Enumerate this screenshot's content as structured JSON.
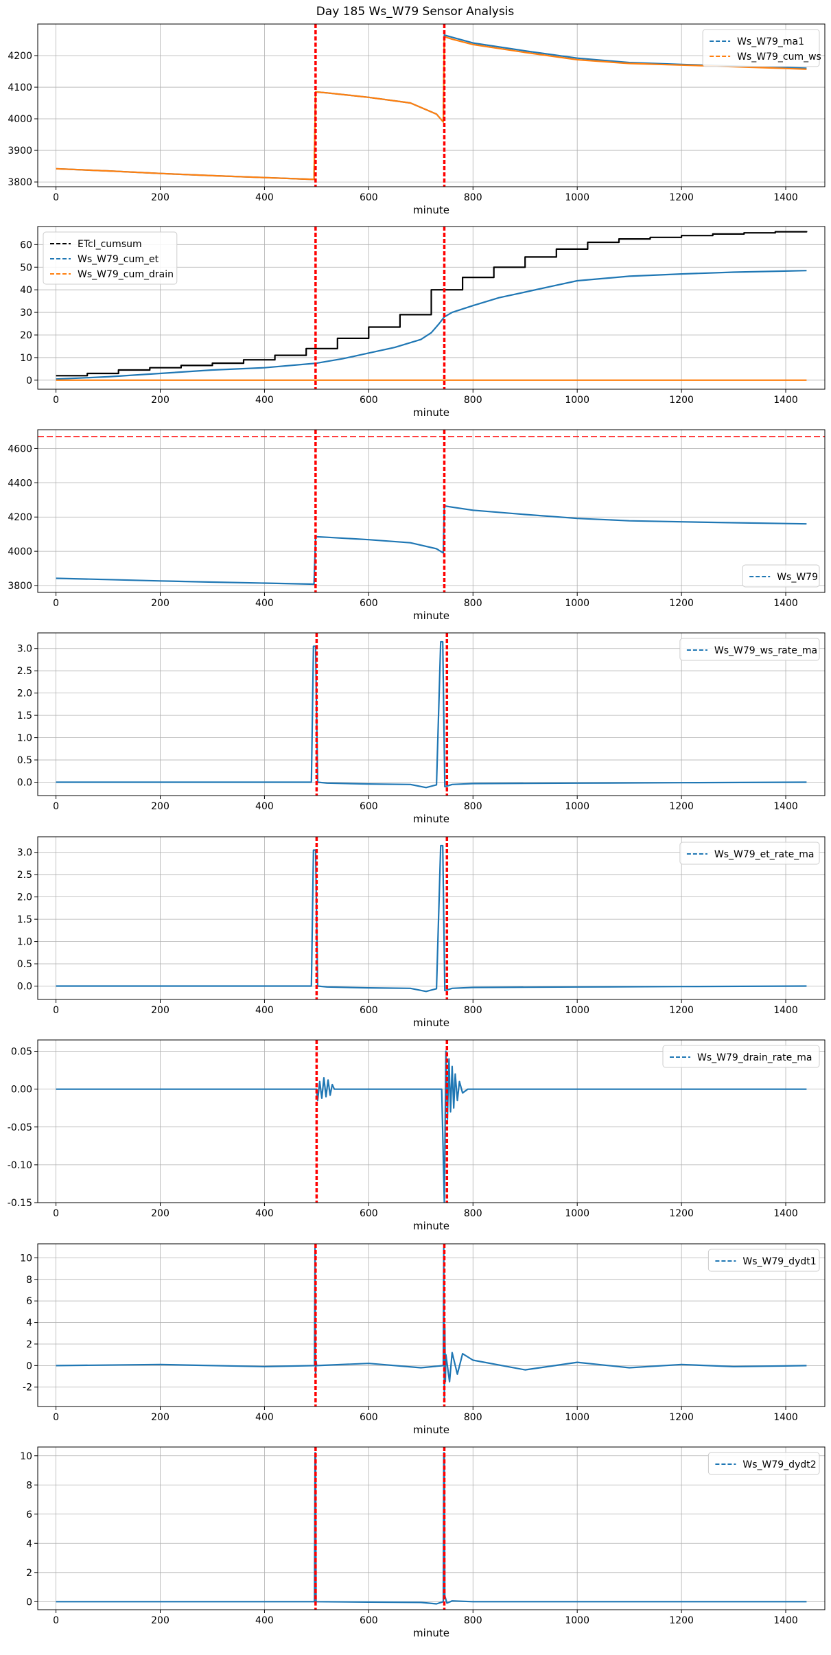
{
  "figure": {
    "title": "Day 185 Ws_W79 Sensor Analysis"
  },
  "colors": {
    "blue": "#1f77b4",
    "orange": "#ff7f0e",
    "black": "#000000",
    "red": "#ff0000",
    "grid": "#b0b0b0"
  },
  "chart_data": [
    {
      "type": "line",
      "xlabel": "minute",
      "xlim": [
        -35,
        1475
      ],
      "ylim": [
        3785,
        4300
      ],
      "xticks": [
        0,
        200,
        400,
        600,
        800,
        1000,
        1200,
        1400
      ],
      "yticks": [
        3800,
        3900,
        4000,
        4100,
        4200
      ],
      "grid": true,
      "legend_position": "top-right",
      "vlines": [
        498,
        745
      ],
      "series": [
        {
          "name": "Ws_W79_ma1",
          "color": "#1f77b4",
          "x": [
            0,
            100,
            200,
            300,
            400,
            495,
            498,
            520,
            600,
            680,
            730,
            743,
            745,
            760,
            800,
            900,
            1000,
            1100,
            1200,
            1300,
            1440
          ],
          "values": [
            3842,
            3835,
            3827,
            3820,
            3814,
            3808,
            4085,
            4082,
            4068,
            4050,
            4015,
            3990,
            4265,
            4258,
            4240,
            4215,
            4192,
            4178,
            4172,
            4167,
            4160
          ]
        },
        {
          "name": "Ws_W79_cum_ws",
          "color": "#ff7f0e",
          "x": [
            0,
            100,
            200,
            300,
            400,
            495,
            498,
            520,
            600,
            680,
            730,
            743,
            745,
            760,
            800,
            900,
            1000,
            1100,
            1200,
            1300,
            1440
          ],
          "values": [
            3842,
            3835,
            3827,
            3820,
            3814,
            3808,
            4085,
            4082,
            4068,
            4050,
            4015,
            3990,
            4260,
            4252,
            4235,
            4210,
            4187,
            4175,
            4170,
            4165,
            4157
          ]
        }
      ]
    },
    {
      "type": "line",
      "xlabel": "minute",
      "xlim": [
        -35,
        1475
      ],
      "ylim": [
        -4,
        68
      ],
      "xticks": [
        0,
        200,
        400,
        600,
        800,
        1000,
        1200,
        1400
      ],
      "yticks": [
        0,
        10,
        20,
        30,
        40,
        50,
        60
      ],
      "grid": true,
      "legend_position": "top-left",
      "vlines": [
        498,
        745
      ],
      "series": [
        {
          "name": "ETcl_cumsum",
          "color": "#000000",
          "step": true,
          "x": [
            0,
            60,
            120,
            180,
            240,
            300,
            360,
            420,
            480,
            540,
            600,
            660,
            720,
            780,
            840,
            900,
            960,
            1020,
            1080,
            1140,
            1200,
            1260,
            1320,
            1380,
            1440
          ],
          "values": [
            2,
            3,
            4.5,
            5.5,
            6.5,
            7.5,
            9,
            11,
            14,
            18.5,
            23.5,
            29,
            40,
            45.5,
            50,
            54.5,
            58,
            61,
            62.5,
            63.2,
            64,
            64.7,
            65.2,
            65.7,
            66
          ]
        },
        {
          "name": "Ws_W79_cum_et",
          "color": "#1f77b4",
          "x": [
            0,
            100,
            200,
            300,
            400,
            500,
            550,
            600,
            650,
            700,
            720,
            735,
            745,
            760,
            800,
            850,
            900,
            950,
            1000,
            1100,
            1200,
            1300,
            1440
          ],
          "values": [
            0.5,
            1.5,
            3,
            4.5,
            5.5,
            7.5,
            9.5,
            12,
            14.5,
            18,
            21,
            25,
            28,
            30,
            33,
            36.5,
            39,
            41.5,
            44,
            46,
            47,
            47.8,
            48.5
          ]
        },
        {
          "name": "Ws_W79_cum_drain",
          "color": "#ff7f0e",
          "x": [
            0,
            1440
          ],
          "values": [
            0,
            0
          ]
        }
      ]
    },
    {
      "type": "line",
      "xlabel": "minute",
      "xlim": [
        -35,
        1475
      ],
      "ylim": [
        3760,
        4710
      ],
      "xticks": [
        0,
        200,
        400,
        600,
        800,
        1000,
        1200,
        1400
      ],
      "yticks": [
        3800,
        4000,
        4200,
        4400,
        4600
      ],
      "grid": true,
      "legend_position": "bottom-right",
      "vlines": [
        498,
        745
      ],
      "hline": 4670,
      "series": [
        {
          "name": "Ws_W79",
          "color": "#1f77b4",
          "x": [
            0,
            100,
            200,
            300,
            400,
            495,
            498,
            520,
            600,
            680,
            730,
            743,
            745,
            760,
            800,
            900,
            1000,
            1100,
            1200,
            1300,
            1440
          ],
          "values": [
            3842,
            3835,
            3827,
            3820,
            3814,
            3808,
            4085,
            4082,
            4068,
            4050,
            4015,
            3990,
            4265,
            4258,
            4240,
            4215,
            4192,
            4178,
            4172,
            4167,
            4160
          ]
        }
      ]
    },
    {
      "type": "line",
      "xlabel": "minute",
      "xlim": [
        -35,
        1475
      ],
      "ylim": [
        -0.3,
        3.35
      ],
      "xticks": [
        0,
        200,
        400,
        600,
        800,
        1000,
        1200,
        1400
      ],
      "yticks": [
        0.0,
        0.5,
        1.0,
        1.5,
        2.0,
        2.5,
        3.0
      ],
      "grid": true,
      "legend_position": "top-right",
      "vlines": [
        500,
        750
      ],
      "series": [
        {
          "name": "Ws_W79_ws_rate_ma",
          "color": "#1f77b4",
          "x": [
            0,
            490,
            494,
            498,
            502,
            520,
            600,
            680,
            710,
            730,
            738,
            742,
            746,
            752,
            760,
            800,
            1000,
            1200,
            1440
          ],
          "values": [
            0,
            0,
            3.05,
            3.05,
            0,
            -0.02,
            -0.04,
            -0.05,
            -0.12,
            -0.06,
            3.15,
            3.15,
            -0.1,
            -0.08,
            -0.05,
            -0.03,
            -0.02,
            -0.01,
            0
          ]
        }
      ]
    },
    {
      "type": "line",
      "xlabel": "minute",
      "xlim": [
        -35,
        1475
      ],
      "ylim": [
        -0.3,
        3.35
      ],
      "xticks": [
        0,
        200,
        400,
        600,
        800,
        1000,
        1200,
        1400
      ],
      "yticks": [
        0.0,
        0.5,
        1.0,
        1.5,
        2.0,
        2.5,
        3.0
      ],
      "grid": true,
      "legend_position": "top-right",
      "vlines": [
        500,
        750
      ],
      "series": [
        {
          "name": "Ws_W79_et_rate_ma",
          "color": "#1f77b4",
          "x": [
            0,
            490,
            494,
            498,
            502,
            520,
            600,
            680,
            710,
            730,
            738,
            742,
            746,
            752,
            760,
            800,
            1000,
            1200,
            1440
          ],
          "values": [
            0,
            0,
            3.05,
            3.05,
            0,
            -0.02,
            -0.04,
            -0.05,
            -0.12,
            -0.06,
            3.15,
            3.15,
            -0.1,
            -0.08,
            -0.05,
            -0.03,
            -0.02,
            -0.01,
            0
          ]
        }
      ]
    },
    {
      "type": "line",
      "xlabel": "minute",
      "xlim": [
        -35,
        1475
      ],
      "ylim": [
        -0.15,
        0.065
      ],
      "xticks": [
        0,
        200,
        400,
        600,
        800,
        1000,
        1200,
        1400
      ],
      "yticks": [
        -0.15,
        -0.1,
        -0.05,
        0.0,
        0.05
      ],
      "ytick_labels": [
        "-0.15",
        "-0.10",
        "-0.05",
        "0.00",
        "0.05"
      ],
      "grid": true,
      "legend_position": "top-right",
      "vlines": [
        500,
        750
      ],
      "series": [
        {
          "name": "Ws_W79_drain_rate_ma",
          "color": "#1f77b4",
          "x": [
            0,
            500,
            502,
            506,
            510,
            514,
            518,
            522,
            526,
            530,
            534,
            540,
            740,
            745,
            748,
            751,
            754,
            757,
            760,
            763,
            766,
            770,
            774,
            780,
            790,
            1440
          ],
          "values": [
            0,
            0,
            -0.015,
            0.01,
            -0.012,
            0.015,
            -0.01,
            0.012,
            -0.008,
            0.006,
            0,
            0,
            0,
            -0.15,
            0.05,
            -0.04,
            0.04,
            -0.03,
            0.03,
            -0.025,
            0.02,
            -0.015,
            0.01,
            -0.005,
            0,
            0
          ]
        }
      ]
    },
    {
      "type": "line",
      "xlabel": "minute",
      "xlim": [
        -35,
        1475
      ],
      "ylim": [
        -3.8,
        11.3
      ],
      "xticks": [
        0,
        200,
        400,
        600,
        800,
        1000,
        1200,
        1400
      ],
      "yticks": [
        -2,
        0,
        2,
        4,
        6,
        8,
        10
      ],
      "grid": true,
      "legend_position": "top-right",
      "vlines": [
        498,
        745
      ],
      "series": [
        {
          "name": "Ws_W79_dydt1",
          "color": "#1f77b4",
          "x": [
            0,
            200,
            400,
            496,
            497,
            498,
            499,
            500,
            600,
            700,
            743,
            744,
            745,
            746,
            747,
            748,
            755,
            760,
            770,
            780,
            800,
            900,
            1000,
            1100,
            1200,
            1300,
            1440
          ],
          "values": [
            0,
            0.1,
            -0.1,
            0,
            10.9,
            -0.8,
            0.4,
            0,
            0.2,
            -0.2,
            0,
            10.9,
            -3,
            3.5,
            -1.5,
            1,
            -1.5,
            1.2,
            -0.8,
            1.1,
            0.5,
            -0.4,
            0.3,
            -0.2,
            0.1,
            -0.1,
            0
          ]
        }
      ]
    },
    {
      "type": "line",
      "xlabel": "minute",
      "xlim": [
        -35,
        1475
      ],
      "ylim": [
        -0.55,
        10.6
      ],
      "xticks": [
        0,
        200,
        400,
        600,
        800,
        1000,
        1200,
        1400
      ],
      "yticks": [
        0,
        2,
        4,
        6,
        8,
        10
      ],
      "grid": true,
      "legend_position": "top-right",
      "vlines": [
        498,
        745
      ],
      "series": [
        {
          "name": "Ws_W79_dydt2",
          "color": "#1f77b4",
          "x": [
            0,
            400,
            496,
            497,
            498,
            499,
            500,
            600,
            700,
            730,
            743,
            744,
            745,
            746,
            750,
            760,
            800,
            1000,
            1440
          ],
          "values": [
            0,
            0,
            0,
            10.2,
            10.2,
            0,
            0,
            -0.03,
            -0.05,
            -0.15,
            0,
            10.2,
            10.2,
            0.4,
            -0.1,
            0.05,
            0,
            0,
            0
          ]
        }
      ]
    }
  ]
}
